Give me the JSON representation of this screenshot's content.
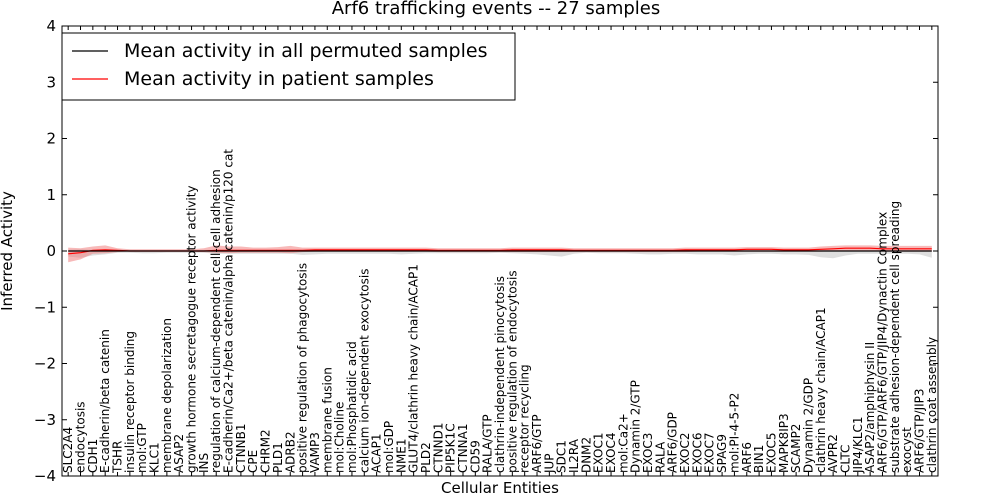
{
  "chart_data": {
    "type": "line",
    "title": "Arf6 trafficking events -- 27 samples",
    "xlabel": "Cellular Entities",
    "ylabel": "Inferred Activity",
    "ylim": [
      -4,
      4
    ],
    "yticks": [
      "−4",
      "−3",
      "−2",
      "−1",
      "0",
      "1",
      "2",
      "3",
      "4"
    ],
    "grid": false,
    "legend_position": "top-left",
    "colors": {
      "permuted": "#000000",
      "patient": "#ff0000",
      "patient_band": "#f08080",
      "permuted_band": "#c8c8c8"
    },
    "categories": [
      "SLC2A4",
      "endocytosis",
      "CDH1",
      "E-cadherin/beta catenin",
      "TSHR",
      "insulin receptor binding",
      "mol:GTP",
      "KLC1",
      "membrane depolarization",
      "ASAP2",
      "growth hormone secretagogue receptor activity",
      "INS",
      "regulation of calcium-dependent cell-cell adhesion",
      "E-cadherin/Ca2+/beta catenin/alpha catenin/p120 cat",
      "CTNNB1",
      "CPE",
      "CHRM2",
      "PLD1",
      "ADRB2",
      "positive regulation of phagocytosis",
      "VAMP3",
      "membrane fusion",
      "mol:Choline",
      "mol:Phosphatidic acid",
      "calcium ion-dependent exocytosis",
      "ACAP1",
      "mol:GDP",
      "NME1",
      "GLUT4/clathrin heavy chain/ACAP1",
      "PLD2",
      "CTNND1",
      "PIP5K1C",
      "CTNNA1",
      "CD59",
      "RALA/GTP",
      "clathrin-independent pinocytosis",
      "positive regulation of endocytosis",
      "receptor recycling",
      "ARF6/GTP",
      "JUP",
      "SDC1",
      "IL2RA",
      "DNM2",
      "EXOC1",
      "EXOC4",
      "mol:Ca2+",
      "Dynamin 2/GTP",
      "EXOC3",
      "RALA",
      "ARF6/GDP",
      "EXOC2",
      "EXOC6",
      "EXOC7",
      "SPAG9",
      "mol:PI-4-5-P2",
      "ARF6",
      "BIN1",
      "EXOC5",
      "MAPK8IP3",
      "SCAMP2",
      "Dynamin 2/GDP",
      "clathrin heavy chain/ACAP1",
      "AVPR2",
      "CLTC",
      "JIP4/KLC1",
      "ASAP2/amphiphysin II",
      "ARF6/GTP/ARF6/GTP/JIP4/Dynactin Complex",
      "substrate adhesion-dependent cell spreading",
      "exocyst",
      "ARF6/GTP/JIP3",
      "clathrin coat assembly"
    ],
    "series": [
      {
        "name": "Mean activity in all permuted samples",
        "values": [
          0,
          0,
          0,
          0,
          0,
          0,
          0,
          0,
          0,
          0,
          0,
          0,
          0,
          0,
          0,
          0,
          0,
          0,
          0,
          0,
          0,
          0,
          0,
          0,
          0,
          0,
          0,
          0,
          0,
          0,
          0,
          0,
          0,
          0,
          0,
          0,
          0,
          0,
          0,
          0,
          0,
          0,
          0,
          0,
          0,
          0,
          0,
          0,
          0,
          0,
          0,
          0,
          0,
          0,
          0,
          0,
          0,
          0,
          0,
          0,
          0,
          0,
          0,
          0,
          0,
          0,
          0,
          0,
          0,
          0,
          0
        ],
        "lower": [
          -0.1,
          -0.12,
          -0.08,
          -0.06,
          -0.03,
          -0.03,
          -0.04,
          -0.04,
          -0.03,
          -0.03,
          -0.03,
          -0.03,
          -0.05,
          -0.05,
          -0.05,
          -0.05,
          -0.05,
          -0.05,
          -0.05,
          -0.07,
          -0.06,
          -0.05,
          -0.05,
          -0.05,
          -0.05,
          -0.05,
          -0.05,
          -0.06,
          -0.05,
          -0.04,
          -0.04,
          -0.04,
          -0.04,
          -0.04,
          -0.04,
          -0.03,
          -0.04,
          -0.05,
          -0.06,
          -0.08,
          -0.1,
          -0.05,
          -0.03,
          -0.04,
          -0.04,
          -0.04,
          -0.05,
          -0.06,
          -0.06,
          -0.05,
          -0.05,
          -0.06,
          -0.06,
          -0.06,
          -0.08,
          -0.06,
          -0.05,
          -0.05,
          -0.06,
          -0.06,
          -0.07,
          -0.11,
          -0.13,
          -0.08,
          -0.05,
          -0.05,
          -0.05,
          -0.05,
          -0.05,
          -0.06,
          -0.12
        ],
        "upper": [
          0.02,
          0.03,
          0.02,
          0.02,
          0.02,
          0.02,
          0.01,
          0.01,
          0.01,
          0.01,
          0.01,
          0.01,
          0.01,
          0.01,
          0.01,
          0.01,
          0.01,
          0.01,
          0.01,
          0.01,
          0.01,
          0.01,
          0.01,
          0.01,
          0.01,
          0.01,
          0.01,
          0.01,
          0.01,
          0.01,
          0.01,
          0.01,
          0.01,
          0.01,
          0.01,
          0.01,
          0.01,
          0.01,
          0.01,
          0.01,
          0.01,
          0.01,
          0.01,
          0.01,
          0.01,
          0.01,
          0.01,
          0.01,
          0.01,
          0.01,
          0.01,
          0.01,
          0.01,
          0.01,
          0.01,
          0.01,
          0.01,
          0.01,
          0.01,
          0.01,
          0.01,
          0.01,
          0.01,
          0.01,
          0.01,
          0.01,
          0.01,
          0.01,
          0.01,
          0.01,
          0.01
        ]
      },
      {
        "name": "Mean activity in patient samples",
        "values": [
          -0.05,
          -0.03,
          0.01,
          0.02,
          0.01,
          0,
          0,
          0,
          0,
          0,
          0,
          0,
          0.01,
          0.01,
          0.01,
          0.01,
          0.01,
          0.01,
          0.01,
          0.01,
          0.02,
          0.02,
          0.02,
          0.02,
          0.02,
          0.02,
          0.02,
          0.02,
          0.02,
          0.02,
          0.01,
          0.01,
          0.01,
          0.01,
          0.01,
          0.01,
          0.02,
          0.02,
          0.02,
          0.02,
          0.02,
          0.01,
          0.01,
          0.01,
          0.01,
          0.01,
          0.01,
          0.01,
          0.01,
          0.01,
          0.02,
          0.02,
          0.02,
          0.02,
          0.02,
          0.03,
          0.03,
          0.03,
          0.02,
          0.02,
          0.02,
          0.03,
          0.04,
          0.05,
          0.05,
          0.05,
          0.04,
          0.04,
          0.04,
          0.04,
          0.04
        ],
        "lower": [
          -0.2,
          -0.15,
          -0.05,
          -0.04,
          -0.02,
          -0.01,
          -0.01,
          -0.01,
          -0.01,
          -0.01,
          -0.01,
          -0.02,
          -0.03,
          -0.04,
          -0.03,
          -0.03,
          -0.03,
          -0.03,
          -0.04,
          -0.02,
          -0.01,
          -0.01,
          -0.01,
          -0.01,
          -0.01,
          -0.01,
          -0.01,
          -0.01,
          -0.01,
          -0.01,
          -0.02,
          -0.02,
          -0.02,
          -0.02,
          -0.02,
          -0.02,
          -0.02,
          -0.02,
          -0.02,
          -0.02,
          -0.02,
          -0.02,
          -0.02,
          -0.02,
          -0.02,
          -0.02,
          -0.02,
          -0.02,
          -0.02,
          -0.02,
          -0.02,
          -0.01,
          -0.01,
          -0.01,
          -0.01,
          -0.01,
          -0.01,
          -0.01,
          -0.01,
          -0.01,
          -0.01,
          -0.01,
          0,
          0,
          0,
          0,
          -0.01,
          -0.01,
          -0.01,
          -0.01,
          -0.01
        ],
        "upper": [
          0.06,
          0.05,
          0.08,
          0.1,
          0.05,
          0.03,
          0.03,
          0.03,
          0.03,
          0.03,
          0.03,
          0.05,
          0.1,
          0.08,
          0.08,
          0.06,
          0.06,
          0.07,
          0.09,
          0.06,
          0.06,
          0.06,
          0.06,
          0.06,
          0.06,
          0.06,
          0.06,
          0.06,
          0.06,
          0.06,
          0.05,
          0.05,
          0.05,
          0.05,
          0.05,
          0.05,
          0.06,
          0.06,
          0.06,
          0.06,
          0.06,
          0.05,
          0.05,
          0.05,
          0.05,
          0.05,
          0.05,
          0.05,
          0.05,
          0.05,
          0.06,
          0.06,
          0.06,
          0.06,
          0.06,
          0.07,
          0.07,
          0.07,
          0.06,
          0.06,
          0.06,
          0.08,
          0.09,
          0.1,
          0.1,
          0.1,
          0.09,
          0.09,
          0.09,
          0.09,
          0.09
        ]
      }
    ]
  }
}
